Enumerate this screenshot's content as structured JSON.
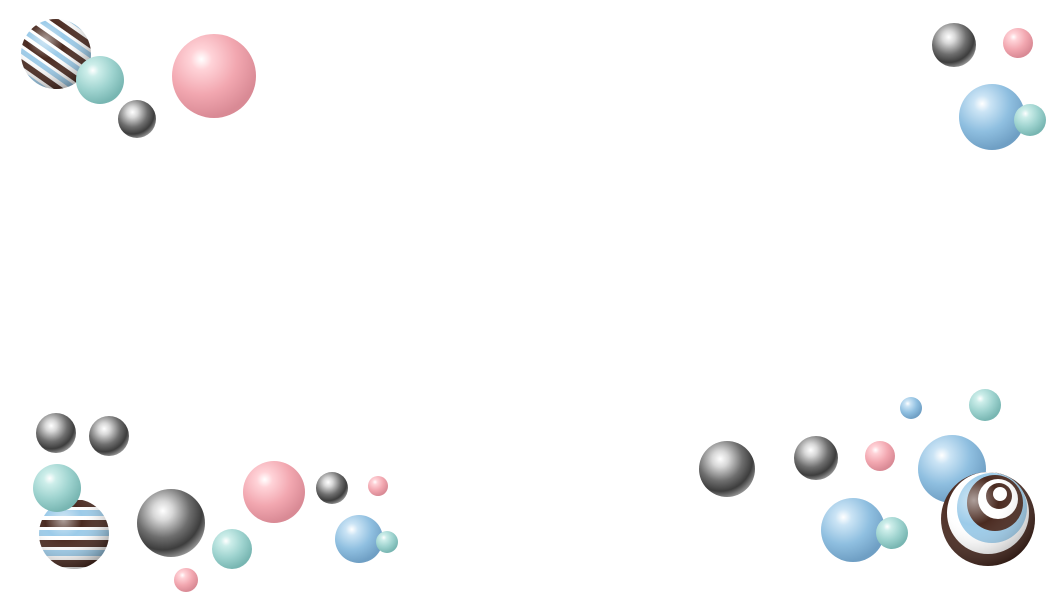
{
  "background_color": "#ffffff",
  "palette": {
    "pink": "#f2a7b0",
    "blue": "#8fbfe0",
    "mint": "#9ed3cf",
    "silver": "#8d8d8d",
    "stripe_dark": "#4a2a20",
    "stripe_light": "#9ccbe9",
    "stripe_white": "#ffffff"
  }
}
